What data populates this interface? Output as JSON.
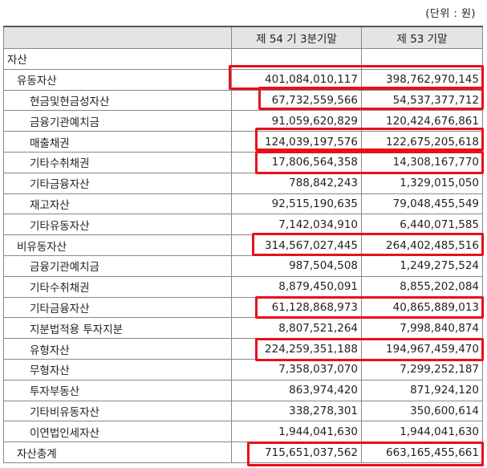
{
  "unit_label": "(단위 : 원)",
  "header": {
    "col_label": "",
    "col_current": "제 54 기 3분기말",
    "col_prior": "제 53 기말"
  },
  "rows": [
    {
      "label": "자산",
      "level": 0,
      "current": "",
      "prior": ""
    },
    {
      "label": "유동자산",
      "level": 1,
      "current": "401,084,010,117",
      "prior": "398,762,970,145"
    },
    {
      "label": "현금및현금성자산",
      "level": 2,
      "current": "67,732,559,566",
      "prior": "54,537,377,712"
    },
    {
      "label": "금융기관예치금",
      "level": 2,
      "current": "91,059,620,829",
      "prior": "120,424,676,861"
    },
    {
      "label": "매출채권",
      "level": 2,
      "current": "124,039,197,576",
      "prior": "122,675,205,618"
    },
    {
      "label": "기타수취채권",
      "level": 2,
      "current": "17,806,564,358",
      "prior": "14,308,167,770"
    },
    {
      "label": "기타금융자산",
      "level": 2,
      "current": "788,842,243",
      "prior": "1,329,015,050"
    },
    {
      "label": "재고자산",
      "level": 2,
      "current": "92,515,190,635",
      "prior": "79,048,455,549"
    },
    {
      "label": "기타유동자산",
      "level": 2,
      "current": "7,142,034,910",
      "prior": "6,440,071,585"
    },
    {
      "label": "비유동자산",
      "level": 1,
      "current": "314,567,027,445",
      "prior": "264,402,485,516"
    },
    {
      "label": "금융기관예치금",
      "level": 2,
      "current": "987,504,508",
      "prior": "1,249,275,524"
    },
    {
      "label": "기타수취채권",
      "level": 2,
      "current": "8,879,450,091",
      "prior": "8,855,202,084"
    },
    {
      "label": "기타금융자산",
      "level": 2,
      "current": "61,128,868,973",
      "prior": "40,865,889,013"
    },
    {
      "label": "지분법적용 투자지분",
      "level": 2,
      "current": "8,807,521,264",
      "prior": "7,998,840,874"
    },
    {
      "label": "유형자산",
      "level": 2,
      "current": "224,259,351,188",
      "prior": "194,967,459,470"
    },
    {
      "label": "무형자산",
      "level": 2,
      "current": "7,358,037,070",
      "prior": "7,299,252,187"
    },
    {
      "label": "투자부동산",
      "level": 2,
      "current": "863,974,420",
      "prior": "871,924,120"
    },
    {
      "label": "기타비유동자산",
      "level": 2,
      "current": "338,278,301",
      "prior": "350,600,614"
    },
    {
      "label": "이연법인세자산",
      "level": 2,
      "current": "1,944,041,630",
      "prior": "1,944,041,630"
    },
    {
      "label": "자산총계",
      "level": 1,
      "current": "715,651,037,562",
      "prior": "663,165,455,661"
    }
  ],
  "highlight_color": "#e8101c"
}
